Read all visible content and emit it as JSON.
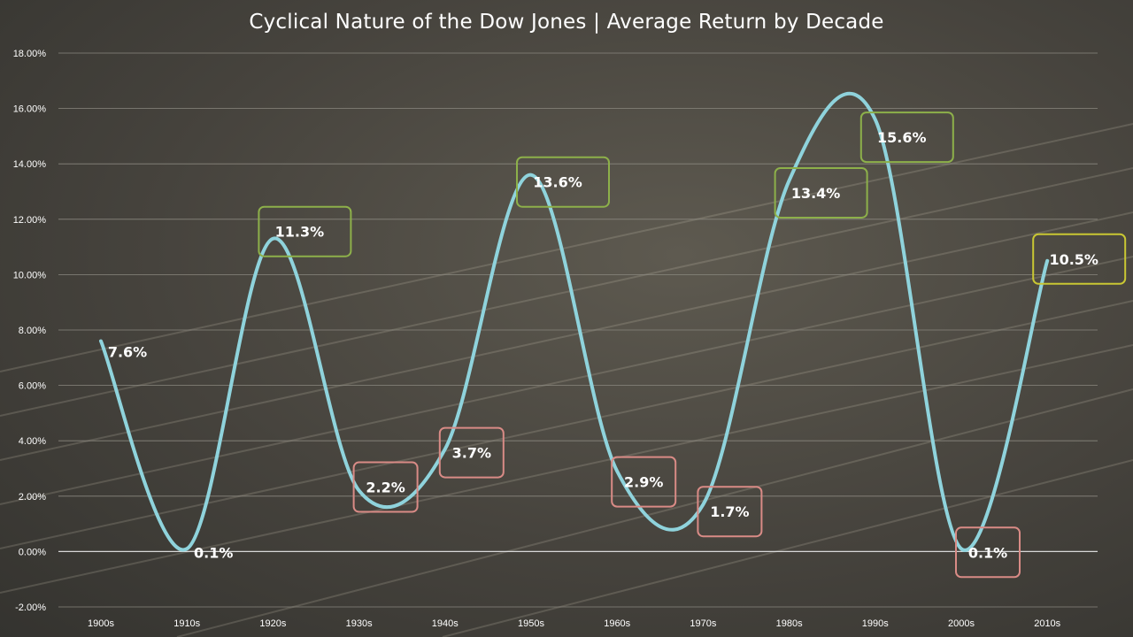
{
  "chart_data": {
    "type": "line",
    "title": "Cyclical Nature of the Dow Jones | Average Return by Decade",
    "xlabel": "",
    "ylabel": "",
    "categories": [
      "1900s",
      "1910s",
      "1920s",
      "1930s",
      "1940s",
      "1950s",
      "1960s",
      "1970s",
      "1980s",
      "1990s",
      "2000s",
      "2010s"
    ],
    "series": [
      {
        "values": [
          7.6,
          0.1,
          11.3,
          2.2,
          3.7,
          13.6,
          2.9,
          1.7,
          13.4,
          15.6,
          0.1,
          10.5
        ],
        "color": "#8fd3dc",
        "smooth": true
      }
    ],
    "data_labels": [
      "7.6%",
      "0.1%",
      "11.3%",
      "2.2%",
      "3.7%",
      "13.6%",
      "2.9%",
      "1.7%",
      "13.4%",
      "15.6%",
      "0.1%",
      "10.5%"
    ],
    "label_boxes": [
      "none",
      "none",
      "green",
      "red",
      "red",
      "green",
      "red",
      "red",
      "green",
      "green",
      "red",
      "yellow"
    ],
    "box_colors": {
      "green": "#8db04a",
      "red": "#d98b86",
      "yellow": "#c9c733"
    },
    "ylim": [
      -2,
      18
    ],
    "yticks": [
      -2,
      0,
      2,
      4,
      6,
      8,
      10,
      12,
      14,
      16,
      18
    ],
    "ytick_labels": [
      "-2.00%",
      "0.00%",
      "2.00%",
      "4.00%",
      "6.00%",
      "8.00%",
      "10.00%",
      "12.00%",
      "14.00%",
      "16.00%",
      "18.00%"
    ],
    "grid": true,
    "legend": "none"
  }
}
